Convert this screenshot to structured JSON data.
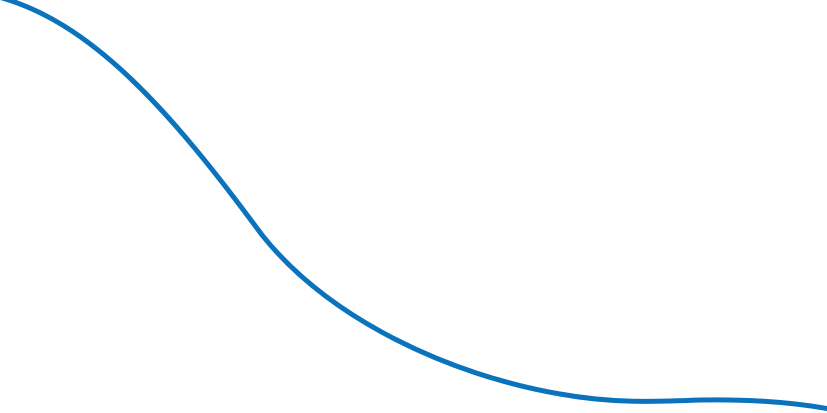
{
  "decoration": {
    "icon": "wave-curve",
    "stroke_color": "#0a73bb"
  }
}
